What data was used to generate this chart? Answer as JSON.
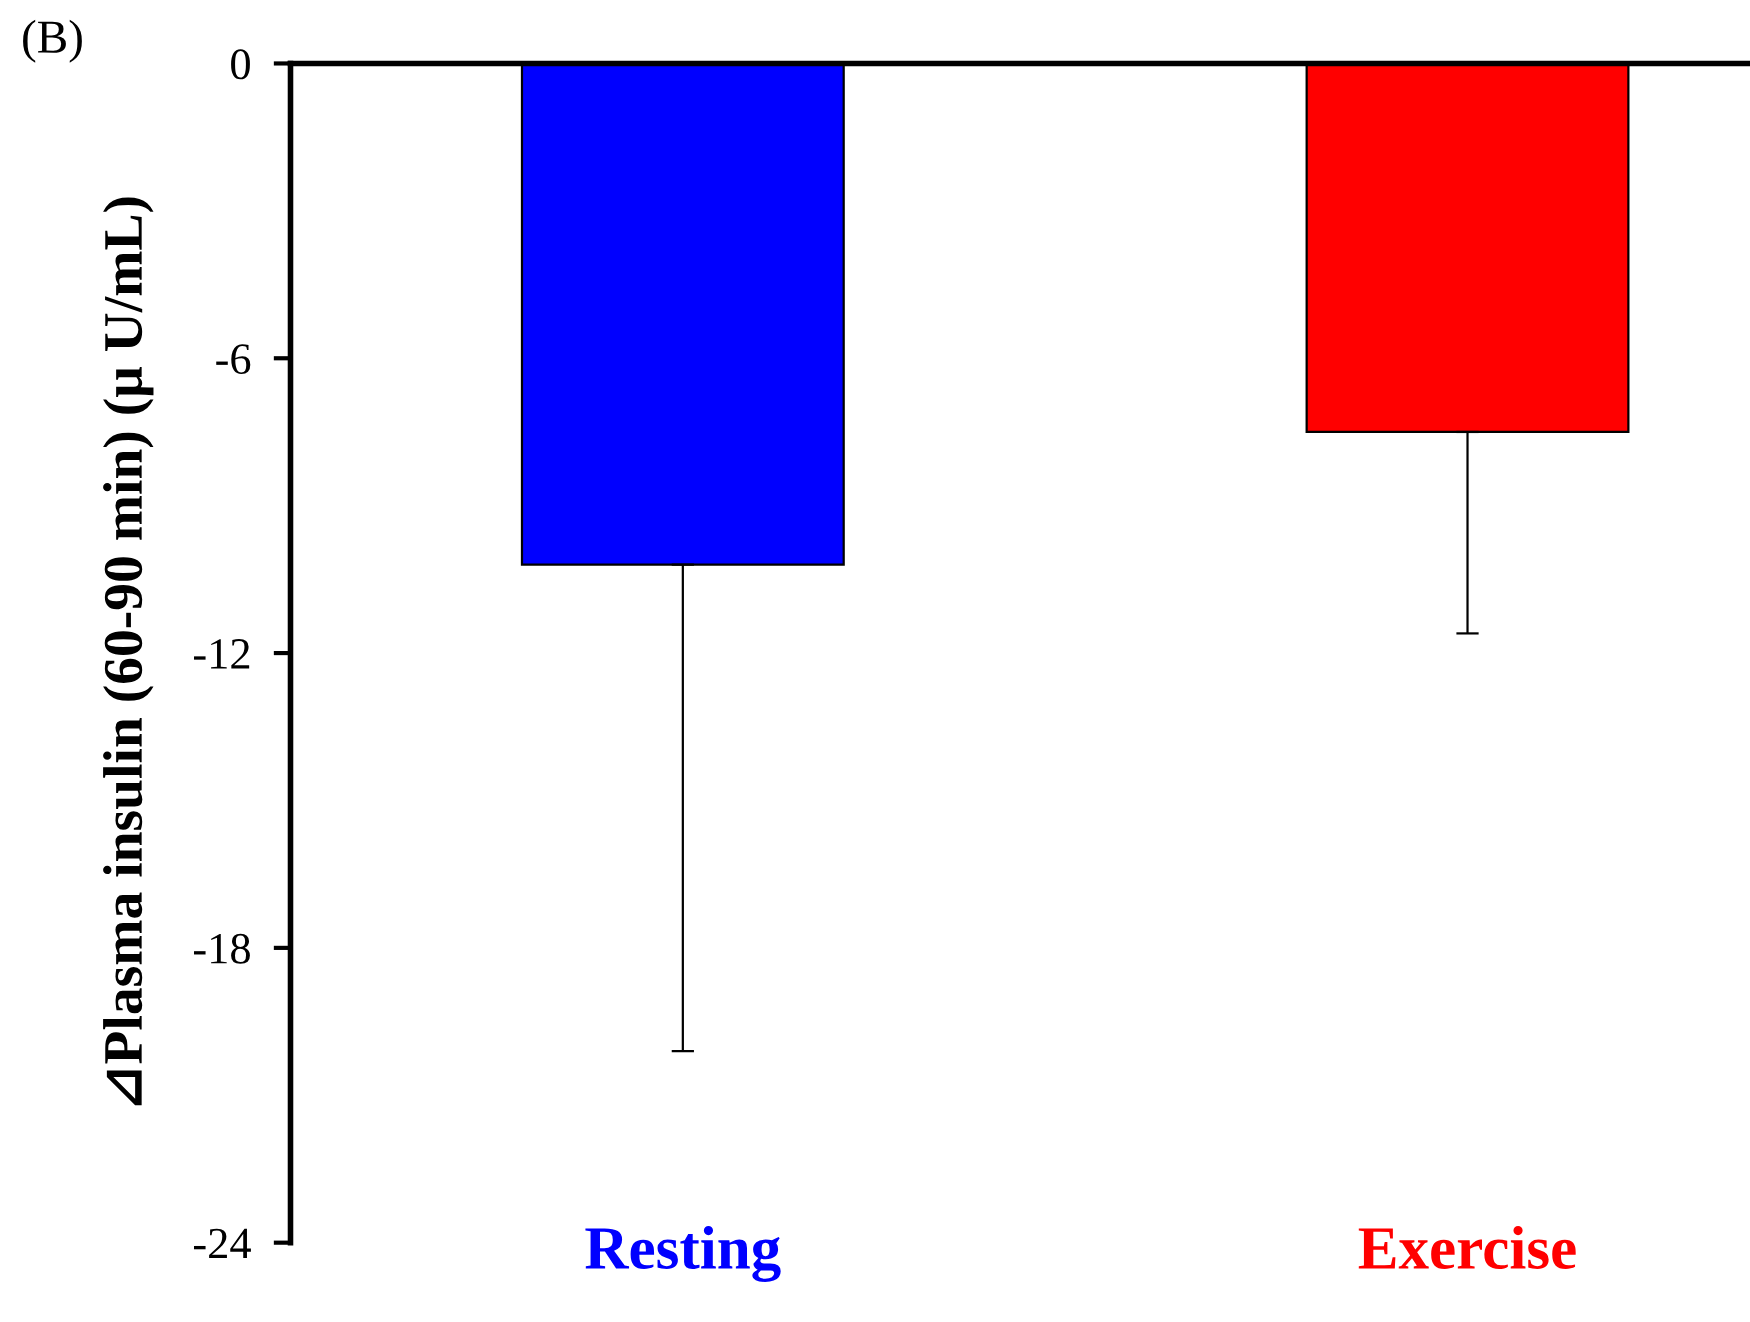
{
  "chart_data": {
    "type": "bar",
    "categories": [
      "Resting",
      "Exercise"
    ],
    "values": [
      -10.2,
      -7.5
    ],
    "colors": [
      "#0000ff",
      "#ff0000"
    ],
    "errors": [
      [
        -20.1,
        -10.2
      ],
      [
        -11.6,
        -7.5
      ]
    ],
    "ylabel": "⊿Plasma insulin (60-90 min) (μ U/mL)",
    "ylim": [
      -24,
      0
    ],
    "yticks": [
      {
        "value": -24,
        "label": "-24"
      },
      {
        "value": -18,
        "label": "-18"
      },
      {
        "value": -12,
        "label": "-12"
      },
      {
        "value": -6,
        "label": "-6"
      },
      0
    ],
    "annotations": [
      "(B)"
    ],
    "grid": false,
    "legend": false
  }
}
